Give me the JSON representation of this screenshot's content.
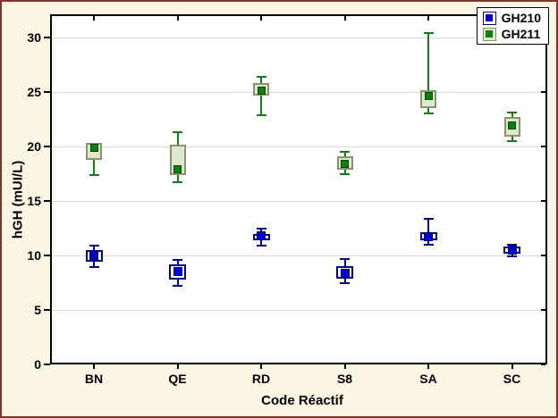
{
  "window": {
    "background": "#FBF5E4",
    "frame_color": "#7B372B"
  },
  "chart_data": {
    "type": "box",
    "title": "",
    "xlabel": "Code Réactif",
    "ylabel": "hGH (mUI/L)",
    "ylim": [
      0,
      32
    ],
    "yticks": [
      0,
      5,
      10,
      15,
      20,
      25,
      30
    ],
    "categories": [
      "BN",
      "QE",
      "RD",
      "S8",
      "SA",
      "SC"
    ],
    "grid": "horizontal",
    "gridline_color": "#D9D9D9",
    "plot_background": "#FFFFFF",
    "legend_position": "top-right",
    "series": [
      {
        "name": "GH210",
        "marker_color": "#0000D2",
        "marker_border": "#000060",
        "box_border": "#00008B",
        "box_fill": "#FFFFFF",
        "whisker_color": "#00008B",
        "points": [
          10.0,
          8.5,
          11.8,
          8.4,
          11.7,
          10.5
        ],
        "box_low": [
          9.4,
          7.8,
          11.4,
          7.9,
          11.4,
          10.2
        ],
        "box_high": [
          10.5,
          9.2,
          12.0,
          9.0,
          12.1,
          10.8
        ],
        "whisker_low": [
          8.9,
          7.2,
          10.9,
          7.5,
          11.0,
          9.9
        ],
        "whisker_high": [
          10.9,
          9.6,
          12.5,
          9.7,
          13.4,
          11.0
        ]
      },
      {
        "name": "GH211",
        "marker_color": "#0E7F0E",
        "marker_border": "#064806",
        "box_border": "#8A926D",
        "box_fill": "#DDE9CB",
        "whisker_color": "#1A7A1A",
        "points": [
          19.9,
          17.9,
          25.1,
          18.4,
          24.6,
          21.9
        ],
        "box_low": [
          18.8,
          17.4,
          24.7,
          17.9,
          23.5,
          20.9
        ],
        "box_high": [
          20.3,
          20.2,
          25.8,
          19.1,
          25.2,
          22.7
        ],
        "whisker_low": [
          17.4,
          16.7,
          22.9,
          17.5,
          23.0,
          20.5
        ],
        "whisker_high": [
          20.3,
          21.3,
          26.4,
          19.5,
          30.4,
          23.1
        ]
      }
    ]
  }
}
